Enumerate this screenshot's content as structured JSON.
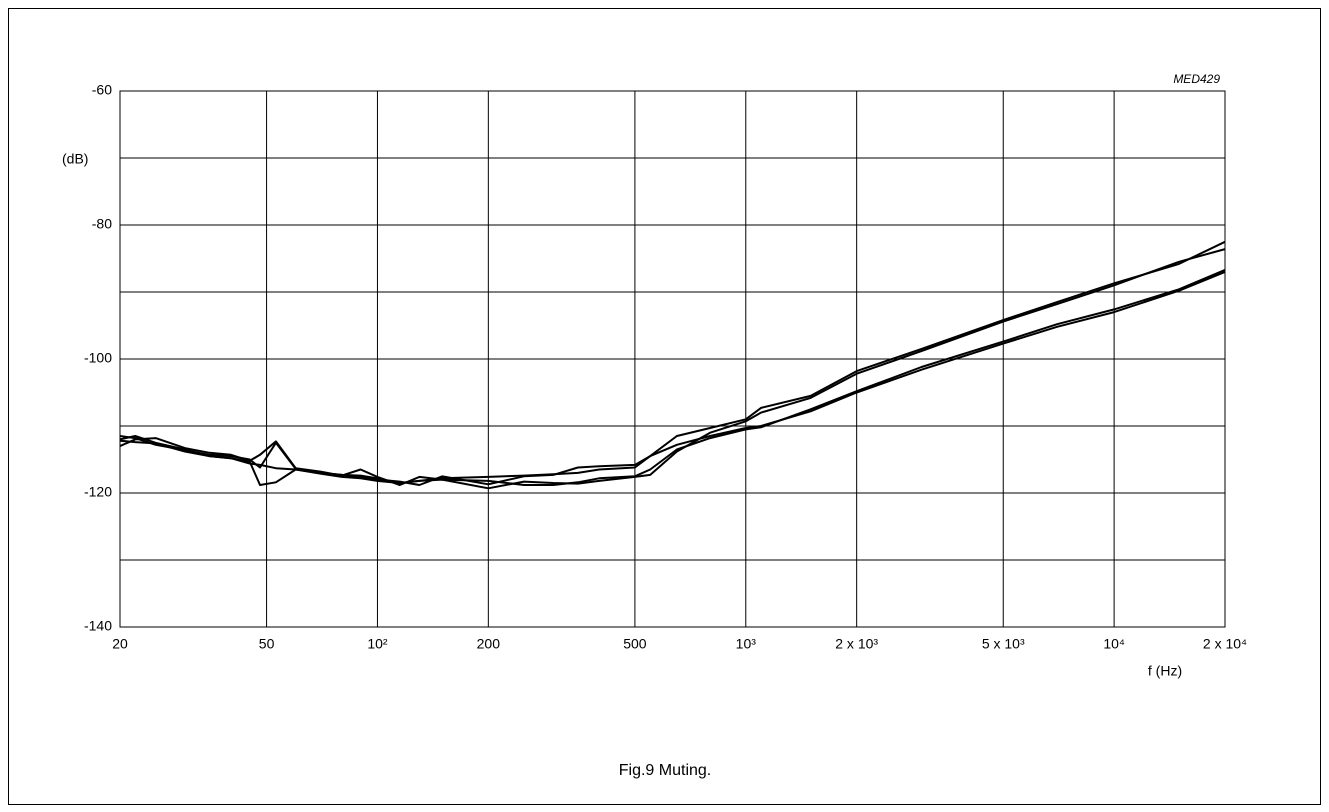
{
  "chart_data": {
    "type": "line",
    "code": "MED429",
    "caption": "Fig.9  Muting.",
    "xlabel": "f  (Hz)",
    "ylabel": "(dB)",
    "xscale": "log",
    "grid": true,
    "xlim": [
      20,
      20000
    ],
    "ylim": [
      -140,
      -60
    ],
    "xticks": [
      20,
      50,
      {
        "value": 100,
        "label": "10²"
      },
      200,
      500,
      {
        "value": 1000,
        "label": "10³"
      },
      {
        "value": 2000,
        "label": "2 x 10³"
      },
      {
        "value": 5000,
        "label": "5 x 10³"
      },
      {
        "value": 10000,
        "label": "10⁴"
      },
      {
        "value": 20000,
        "label": "2 x 10⁴"
      }
    ],
    "yticks": [
      -140,
      -120,
      -100,
      -80,
      -60
    ],
    "y_minor_ticks": [
      -130,
      -110,
      -90,
      -70
    ],
    "x": [
      20,
      22,
      25,
      30,
      35,
      40,
      45,
      48,
      53,
      60,
      70,
      80,
      90,
      100,
      115,
      130,
      150,
      200,
      250,
      300,
      350,
      400,
      500,
      550,
      650,
      800,
      1000,
      1100,
      1500,
      2000,
      3000,
      5000,
      7000,
      10000,
      15000,
      20000
    ],
    "series": [
      {
        "color": "#000000",
        "values": [
          -112,
          -111.5,
          -112.5,
          -113.5,
          -114.5,
          -114.8,
          -115.3,
          -118.8,
          -118.4,
          -116.5,
          -117,
          -117.3,
          -117.4,
          -117.8,
          -118.5,
          -118.2,
          -117.8,
          -117.6,
          -117.4,
          -117.2,
          -117,
          -116.5,
          -116.2,
          -114.5,
          -111.5,
          -110.3,
          -109,
          -107.3,
          -105.5,
          -101.8,
          -98.5,
          -94.2,
          -91.5,
          -88.7,
          -85.8,
          -82.5
        ]
      },
      {
        "color": "#000000",
        "values": [
          -113,
          -112,
          -111.8,
          -113.3,
          -114,
          -114.3,
          -115.2,
          -114.3,
          -112.3,
          -116.3,
          -116.8,
          -117.4,
          -116.5,
          -117.6,
          -118.8,
          -117.6,
          -118,
          -119.3,
          -118.3,
          -118.5,
          -118.6,
          -118.2,
          -117.6,
          -117.3,
          -113.8,
          -111,
          -109.3,
          -108,
          -105.8,
          -102.2,
          -98.8,
          -94.4,
          -91.8,
          -89,
          -85.5,
          -83.6
        ]
      },
      {
        "color": "#000000",
        "values": [
          -111.5,
          -111.8,
          -112.8,
          -113.6,
          -114.3,
          -114.5,
          -115,
          -116.2,
          -112.5,
          -116.4,
          -117,
          -117.3,
          -117.6,
          -118,
          -118.3,
          -118.8,
          -117.5,
          -118.7,
          -117.5,
          -117.3,
          -116.2,
          -116,
          -115.8,
          -114.5,
          -112.8,
          -111.5,
          -110.3,
          -110,
          -107.8,
          -105,
          -101.6,
          -97.7,
          -95.2,
          -93,
          -89.8,
          -87
        ]
      },
      {
        "color": "#000000",
        "values": [
          -112.2,
          -112.4,
          -112.6,
          -113.8,
          -114.5,
          -114.8,
          -115.6,
          -115.8,
          -116.3,
          -116.5,
          -117.1,
          -117.6,
          -117.8,
          -118.2,
          -118.5,
          -118.2,
          -118,
          -118.2,
          -118.8,
          -118.8,
          -118.4,
          -117.8,
          -117.5,
          -116.5,
          -113.5,
          -111.8,
          -110.5,
          -110.2,
          -107.5,
          -104.8,
          -101.2,
          -97.4,
          -94.8,
          -92.6,
          -89.6,
          -86.7
        ]
      }
    ]
  }
}
